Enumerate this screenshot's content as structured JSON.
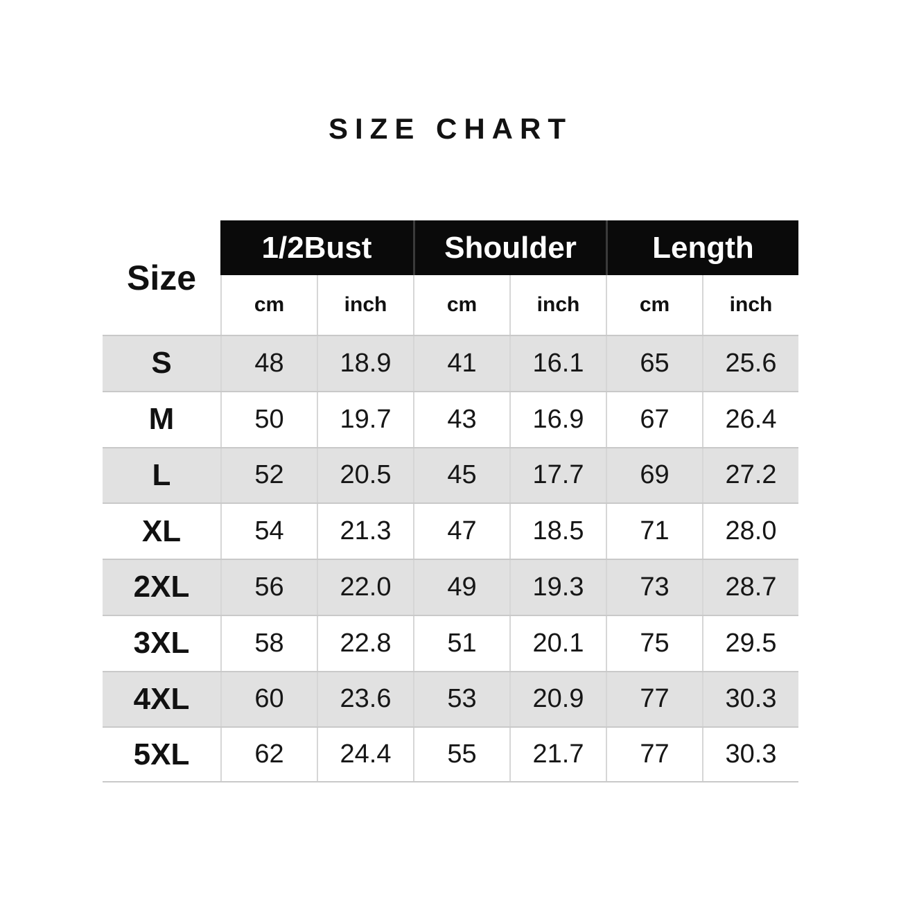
{
  "title": "SIZE CHART",
  "colors": {
    "background": "#ffffff",
    "header_bar": "#0a0a0a",
    "header_text": "#ffffff",
    "stripe": "#e1e1e1",
    "row_line": "#c9c9c9",
    "column_line": "#d6d6d6",
    "text": "#111111"
  },
  "chart_data": {
    "type": "table",
    "title": "SIZE CHART",
    "row_header": "Size",
    "column_groups": [
      "1/2Bust",
      "Shoulder",
      "Length"
    ],
    "unit_headers": [
      "cm",
      "inch",
      "cm",
      "inch",
      "cm",
      "inch"
    ],
    "rows": [
      {
        "size": "S",
        "values": [
          "48",
          "18.9",
          "41",
          "16.1",
          "65",
          "25.6"
        ]
      },
      {
        "size": "M",
        "values": [
          "50",
          "19.7",
          "43",
          "16.9",
          "67",
          "26.4"
        ]
      },
      {
        "size": "L",
        "values": [
          "52",
          "20.5",
          "45",
          "17.7",
          "69",
          "27.2"
        ]
      },
      {
        "size": "XL",
        "values": [
          "54",
          "21.3",
          "47",
          "18.5",
          "71",
          "28.0"
        ]
      },
      {
        "size": "2XL",
        "values": [
          "56",
          "22.0",
          "49",
          "19.3",
          "73",
          "28.7"
        ]
      },
      {
        "size": "3XL",
        "values": [
          "58",
          "22.8",
          "51",
          "20.1",
          "75",
          "29.5"
        ]
      },
      {
        "size": "4XL",
        "values": [
          "60",
          "23.6",
          "53",
          "20.9",
          "77",
          "30.3"
        ]
      },
      {
        "size": "5XL",
        "values": [
          "62",
          "24.4",
          "55",
          "21.7",
          "77",
          "30.3"
        ]
      }
    ]
  }
}
